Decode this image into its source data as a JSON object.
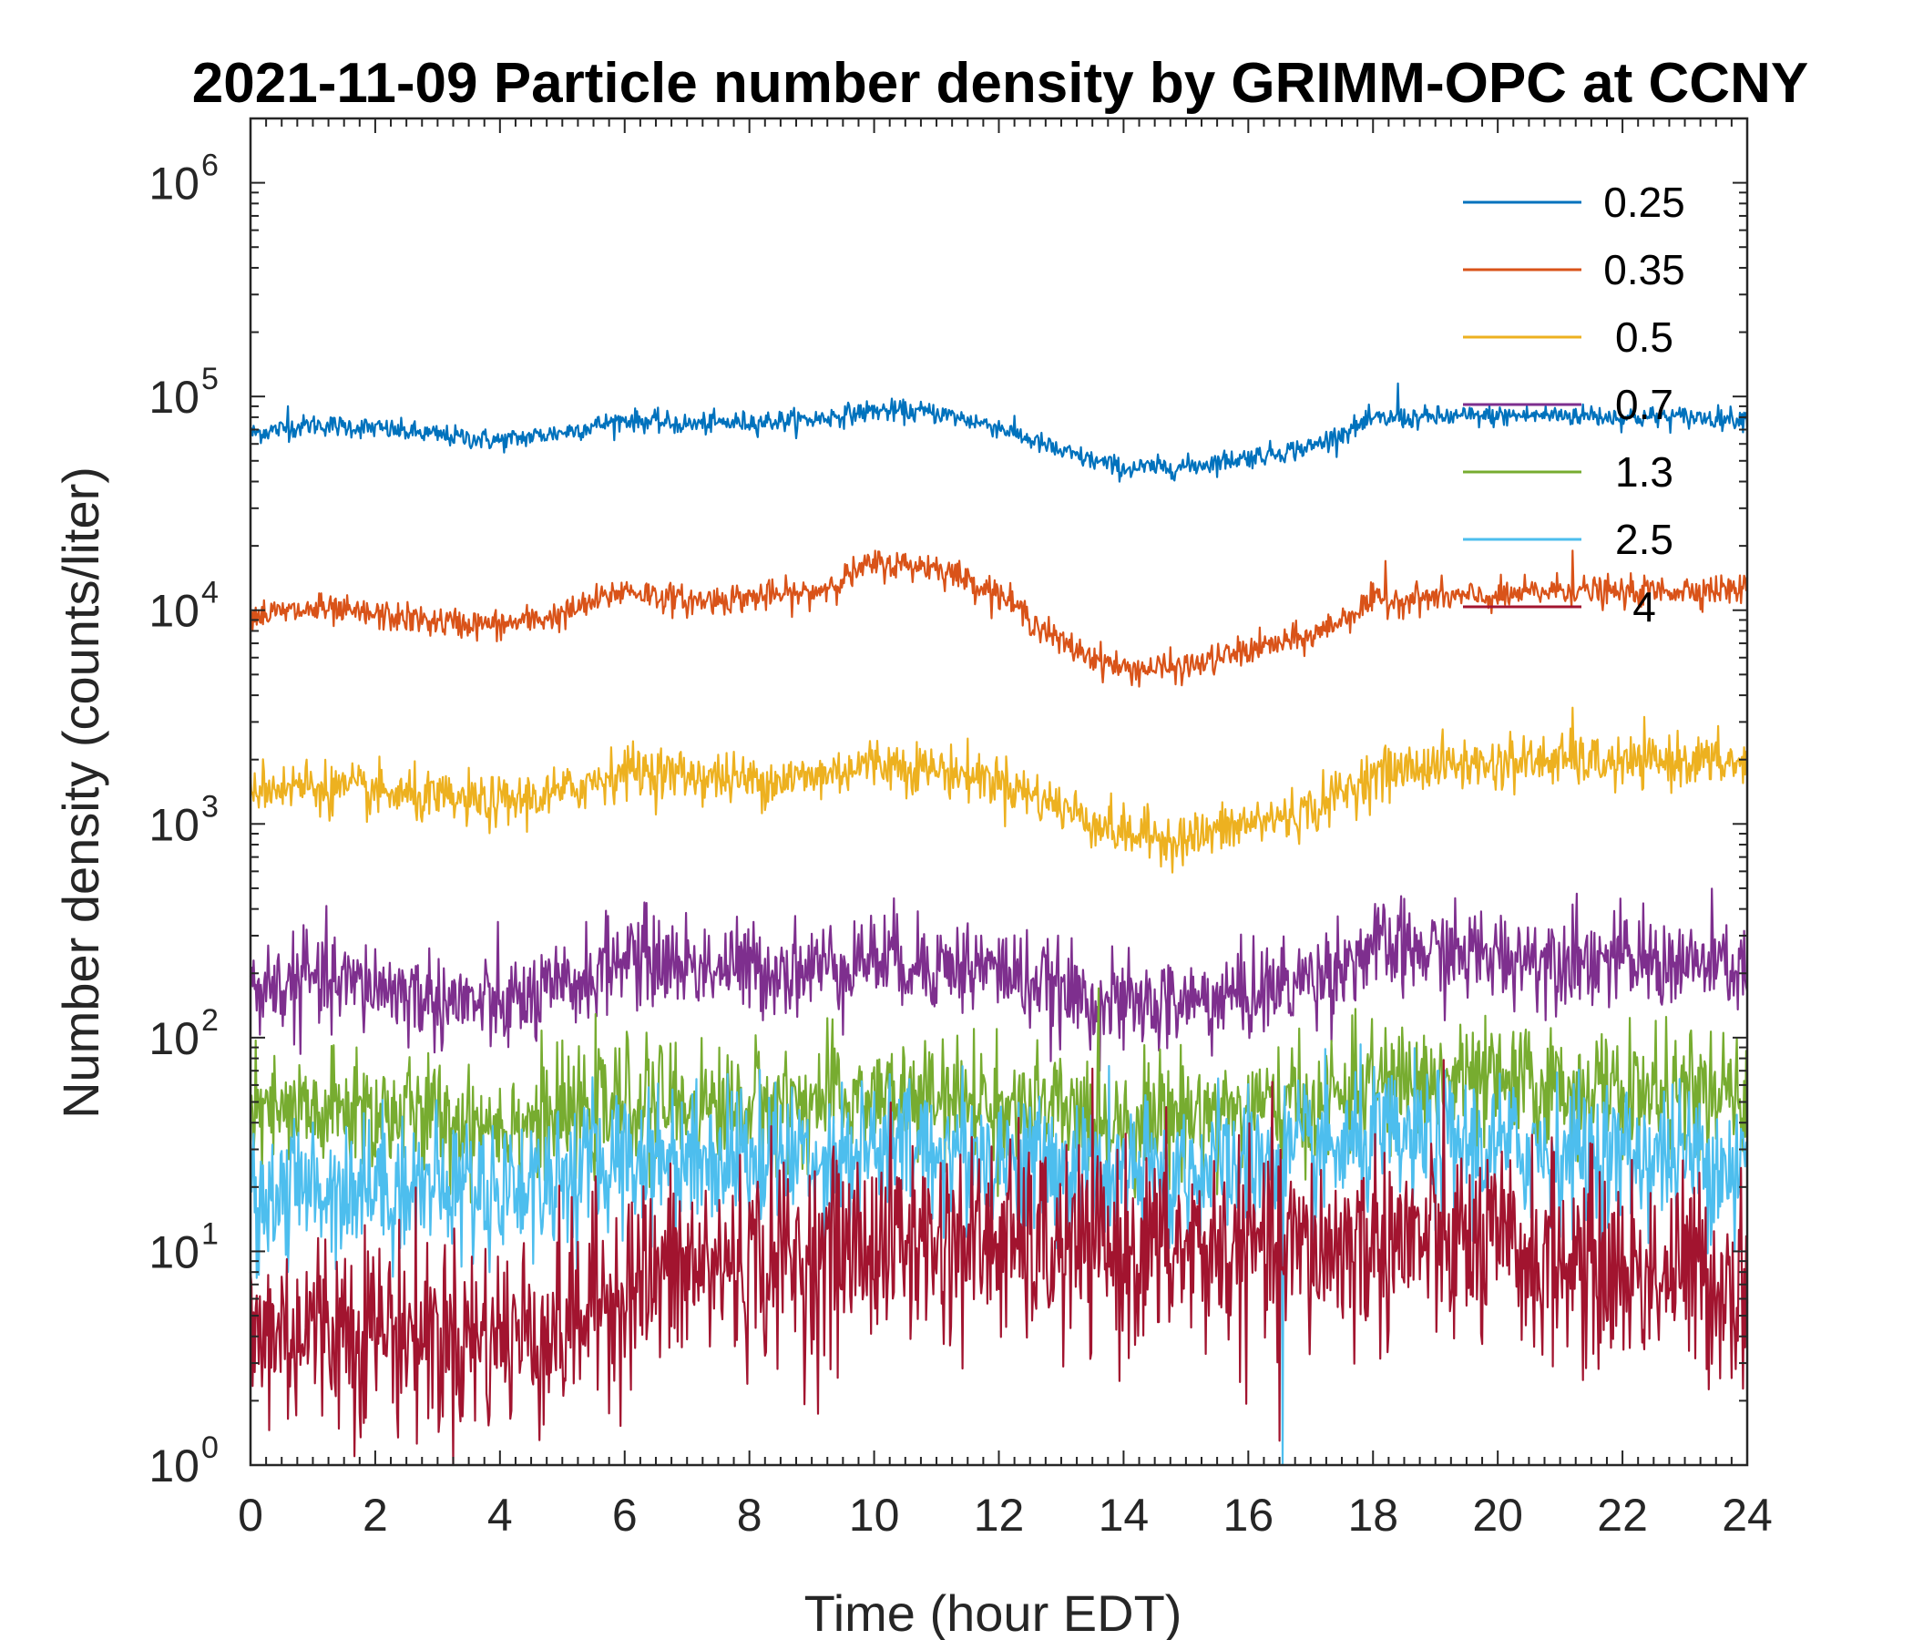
{
  "chart_data": {
    "type": "line",
    "title": "2021-11-09 Particle number density by GRIMM-OPC at CCNY",
    "xlabel": "Time (hour EDT)",
    "ylabel": "Number density (counts/liter)",
    "yscale": "log",
    "xlim": [
      0,
      24
    ],
    "ylim": [
      1,
      2000000
    ],
    "x_ticks": [
      0,
      2,
      4,
      6,
      8,
      10,
      12,
      14,
      16,
      18,
      20,
      22,
      24
    ],
    "x_tick_labels": [
      "0",
      "2",
      "4",
      "6",
      "8",
      "10",
      "12",
      "14",
      "16",
      "18",
      "20",
      "22",
      "24"
    ],
    "y_ticks": [
      {
        "value": 1,
        "base": "10",
        "exp": "0"
      },
      {
        "value": 10,
        "base": "10",
        "exp": "1"
      },
      {
        "value": 100,
        "base": "10",
        "exp": "2"
      },
      {
        "value": 1000,
        "base": "10",
        "exp": "3"
      },
      {
        "value": 10000,
        "base": "10",
        "exp": "4"
      },
      {
        "value": 100000,
        "base": "10",
        "exp": "5"
      },
      {
        "value": 1000000,
        "base": "10",
        "exp": "6"
      }
    ],
    "legend_position": "top-right",
    "x": [
      0,
      1,
      2,
      3,
      4,
      5,
      6,
      7,
      8,
      9,
      10,
      11,
      12,
      13,
      14,
      15,
      16,
      17,
      18,
      19,
      20,
      21,
      22,
      23,
      24
    ],
    "series": [
      {
        "name": "0.25",
        "color": "#0072BD",
        "noise": 0.025,
        "values": [
          67000,
          74000,
          71000,
          66000,
          62000,
          68000,
          78000,
          74000,
          76000,
          78000,
          86000,
          84000,
          72000,
          55000,
          46000,
          47000,
          52000,
          58000,
          78000,
          80000,
          81000,
          82000,
          80000,
          80000,
          79000
        ],
        "spikes": [
          {
            "x": 0.6,
            "v": 90000
          },
          {
            "x": 18.4,
            "v": 115000
          },
          {
            "x": 21.5,
            "v": 90000
          }
        ]
      },
      {
        "name": "0.35",
        "color": "#D95319",
        "noise": 0.035,
        "values": [
          9500,
          10000,
          9500,
          8800,
          8500,
          9500,
          12500,
          11000,
          11500,
          12000,
          16500,
          16000,
          12000,
          7000,
          5300,
          5400,
          6500,
          7500,
          11000,
          11500,
          11500,
          12500,
          12000,
          12500,
          12500
        ],
        "spikes": [
          {
            "x": 18.2,
            "v": 17000
          },
          {
            "x": 21.2,
            "v": 19000
          },
          {
            "x": 1.1,
            "v": 12000
          }
        ]
      },
      {
        "name": "0.5",
        "color": "#EDB120",
        "noise": 0.06,
        "values": [
          1500,
          1500,
          1400,
          1300,
          1250,
          1400,
          1800,
          1700,
          1600,
          1650,
          1950,
          1800,
          1600,
          1200,
          900,
          850,
          1000,
          1150,
          1700,
          1900,
          1900,
          2000,
          1900,
          2000,
          1900
        ],
        "spikes": [
          {
            "x": 21.2,
            "v": 3500
          },
          {
            "x": 0.9,
            "v": 2000
          },
          {
            "x": 20.2,
            "v": 2700
          }
        ]
      },
      {
        "name": "0.7",
        "color": "#7E2F8E",
        "noise": 0.11,
        "values": [
          170,
          180,
          175,
          150,
          140,
          165,
          240,
          220,
          210,
          210,
          240,
          220,
          210,
          160,
          140,
          145,
          160,
          190,
          260,
          250,
          240,
          240,
          230,
          220,
          210
        ],
        "spikes": [
          {
            "x": 0.9,
            "v": 320
          },
          {
            "x": 6.1,
            "v": 340
          },
          {
            "x": 21.2,
            "v": 420
          }
        ]
      },
      {
        "name": "1.3",
        "color": "#77AC30",
        "noise": 0.14,
        "values": [
          42,
          44,
          45,
          42,
          40,
          42,
          50,
          48,
          48,
          50,
          52,
          50,
          48,
          44,
          42,
          44,
          46,
          48,
          60,
          62,
          60,
          58,
          56,
          54,
          50
        ],
        "spikes": [
          {
            "x": 1.7,
            "v": 90
          },
          {
            "x": 19.4,
            "v": 115
          },
          {
            "x": 11.6,
            "v": 110
          }
        ]
      },
      {
        "name": "2.5",
        "color": "#4DBEEE",
        "noise": 0.17,
        "values": [
          18,
          20,
          21,
          20,
          20,
          22,
          28,
          28,
          28,
          28,
          30,
          30,
          28,
          24,
          22,
          24,
          26,
          28,
          32,
          32,
          30,
          30,
          28,
          28,
          26
        ],
        "spikes": [
          {
            "x": 16.55,
            "v": 1
          },
          {
            "x": 0.6,
            "v": 8
          },
          {
            "x": 23.8,
            "v": 10
          }
        ]
      },
      {
        "name": "4",
        "color": "#A2142F",
        "noise": 0.24,
        "values": [
          4,
          4.5,
          4.5,
          4,
          4,
          4.5,
          7,
          8,
          9,
          9,
          11,
          11,
          11,
          10,
          10,
          10,
          10,
          10,
          11,
          11,
          10,
          9,
          8,
          8,
          7
        ],
        "spikes": [
          {
            "x": 16.5,
            "v": 1.3
          },
          {
            "x": 10.4,
            "v": 22
          },
          {
            "x": 18.3,
            "v": 20
          }
        ]
      }
    ]
  }
}
